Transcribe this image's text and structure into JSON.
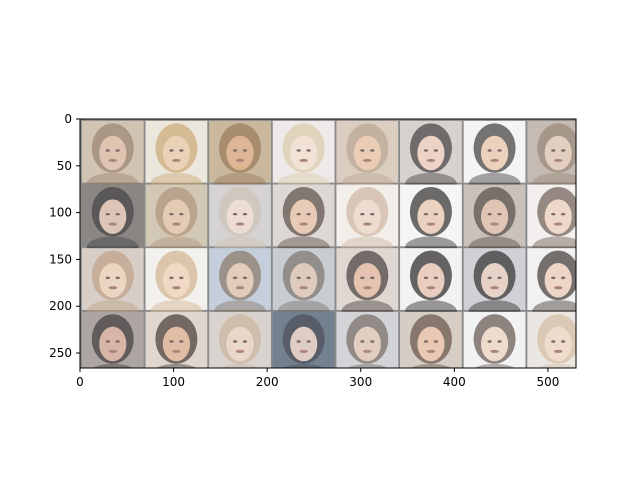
{
  "chart_data": {
    "type": "heatmap",
    "title": "",
    "xlabel": "",
    "ylabel": "",
    "xlim": [
      0,
      530
    ],
    "ylim": [
      266,
      0
    ],
    "x_ticks": [
      0,
      100,
      200,
      300,
      400,
      500
    ],
    "y_ticks": [
      0,
      50,
      100,
      150,
      200,
      250
    ],
    "x_tick_labels": [
      "0",
      "100",
      "200",
      "300",
      "400",
      "500"
    ],
    "y_tick_labels": [
      "0",
      "50",
      "100",
      "150",
      "200",
      "250"
    ],
    "grid": false,
    "image": {
      "description_rows": 4,
      "description_cols": 8,
      "cell_size": 66,
      "padding": 2,
      "border_color": "#8a8a8a",
      "tiles": [
        {
          "bg": "#c9b7a3",
          "skin": "#d8b9a0",
          "hair": "#8f7760"
        },
        {
          "bg": "#e8e2d6",
          "skin": "#e6c9a8",
          "hair": "#c6a36c"
        },
        {
          "bg": "#bda989",
          "skin": "#d8a77e",
          "hair": "#8e6a45"
        },
        {
          "bg": "#e9e6e4",
          "skin": "#f0dccd",
          "hair": "#d8c6a6"
        },
        {
          "bg": "#d4c4b4",
          "skin": "#e7c3a7",
          "hair": "#b39b86"
        },
        {
          "bg": "#cfc8c4",
          "skin": "#e8cab9",
          "hair": "#3a3535"
        },
        {
          "bg": "#f2f2f2",
          "skin": "#e8c7ae",
          "hair": "#3c3837"
        },
        {
          "bg": "#b9aca2",
          "skin": "#ddc5b3",
          "hair": "#8b7866"
        },
        {
          "bg": "#6f6c6a",
          "skin": "#d5b8a7",
          "hair": "#2c2929"
        },
        {
          "bg": "#c9bca6",
          "skin": "#dec1a4",
          "hair": "#a6896b"
        },
        {
          "bg": "#cbc9c8",
          "skin": "#e9d5c8",
          "hair": "#c6b9ad"
        },
        {
          "bg": "#d6d0cc",
          "skin": "#e2c0a6",
          "hair": "#53443b"
        },
        {
          "bg": "#f0ece7",
          "skin": "#ead5c5",
          "hair": "#cbb29a"
        },
        {
          "bg": "#f3f3f3",
          "skin": "#e7c7b3",
          "hair": "#2e2a2a"
        },
        {
          "bg": "#bfb5ab",
          "skin": "#d9b8a4",
          "hair": "#4b3f39"
        },
        {
          "bg": "#efeceb",
          "skin": "#e9d0bf",
          "hair": "#6b5a51"
        },
        {
          "bg": "#cfc4bb",
          "skin": "#e7cdb5",
          "hair": "#b6977a"
        },
        {
          "bg": "#f1eeea",
          "skin": "#ecd0b7",
          "hair": "#cfb08b"
        },
        {
          "bg": "#b7c5d4",
          "skin": "#dcc2ad",
          "hair": "#7b6b5e"
        },
        {
          "bg": "#bcc2c9",
          "skin": "#d7c0b0",
          "hair": "#6f6863"
        },
        {
          "bg": "#d8cfc7",
          "skin": "#deb7a0",
          "hair": "#3f3530"
        },
        {
          "bg": "#efefef",
          "skin": "#e5c4b1",
          "hair": "#242121"
        },
        {
          "bg": "#c9c6cf",
          "skin": "#e2c8bb",
          "hair": "#262323"
        },
        {
          "bg": "#eeeeee",
          "skin": "#e9cdb9",
          "hair": "#3b3431"
        },
        {
          "bg": "#9b9290",
          "skin": "#cfa692",
          "hair": "#2f2828"
        },
        {
          "bg": "#d9cec4",
          "skin": "#dbae92",
          "hair": "#3d2f29"
        },
        {
          "bg": "#d0cac5",
          "skin": "#e5cfbf",
          "hair": "#c4ab93"
        },
        {
          "bg": "#556577",
          "skin": "#d8c1b6",
          "hair": "#2f3441"
        },
        {
          "bg": "#c9cbcf",
          "skin": "#dcc4b4",
          "hair": "#6d625c"
        },
        {
          "bg": "#cec3b7",
          "skin": "#e4bea3",
          "hair": "#5c473b"
        },
        {
          "bg": "#efefef",
          "skin": "#ead3c3",
          "hair": "#5e514a"
        },
        {
          "bg": "#e6e1dc",
          "skin": "#edd5c2",
          "hair": "#d0b79b"
        }
      ]
    }
  }
}
